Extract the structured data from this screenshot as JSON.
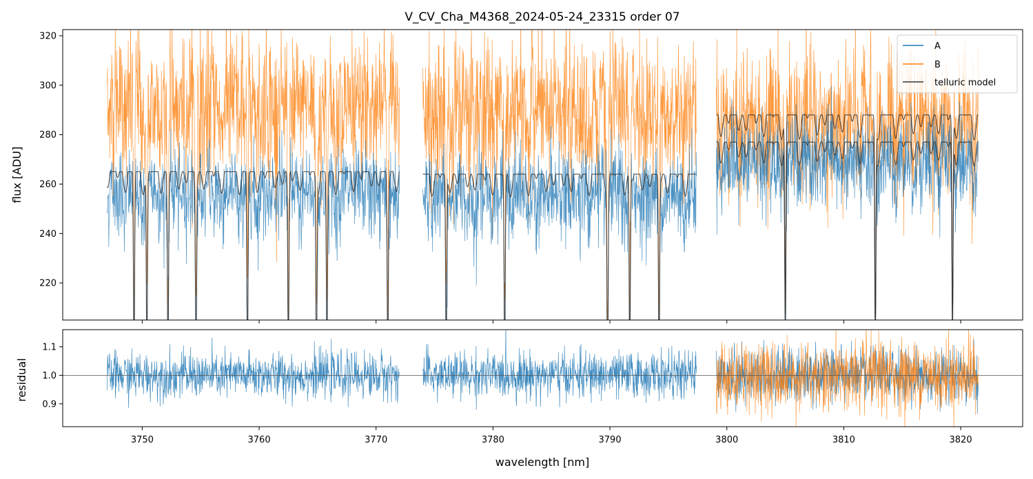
{
  "title": "V_CV_Cha_M4368_2024-05-24_23315  order 07",
  "colors": {
    "A": "#1f77b4",
    "B": "#ff7f0e",
    "telluric": "#333333",
    "axes": "#000000"
  },
  "chart_data": [
    {
      "type": "line",
      "panel": "flux",
      "xlabel": "",
      "ylabel": "flux [ADU]",
      "xlim": [
        3743.2,
        3825.3
      ],
      "ylim": [
        205,
        322.5
      ],
      "yticks": [
        220,
        240,
        260,
        280,
        300,
        320
      ],
      "xticks": [
        3750,
        3760,
        3770,
        3780,
        3790,
        3800,
        3810,
        3820
      ],
      "legend_position": "top-right",
      "legend": [
        "A",
        "B",
        "telluric model"
      ],
      "segments": [
        {
          "x_range": [
            3747.0,
            3772.0
          ],
          "A_level": 258,
          "B_level": 293,
          "model_level": 265
        },
        {
          "x_range": [
            3774.0,
            3797.4
          ],
          "A_level": 257,
          "B_level": 291,
          "model_level": 264
        },
        {
          "x_range": [
            3799.1,
            3821.5
          ],
          "A_level": 270,
          "B_level": 287,
          "model_upper_level": 288,
          "model_lower_level": 277
        }
      ],
      "telluric_absorption_lines": [
        3749.3,
        3750.4,
        3752.2,
        3754.6,
        3759.0,
        3762.5,
        3764.9,
        3765.8,
        3771.0,
        3776.0,
        3781.0,
        3789.8,
        3791.7,
        3794.2,
        3805.0,
        3812.7,
        3819.3
      ]
    },
    {
      "type": "line",
      "panel": "residual",
      "xlabel": "wavelength [nm]",
      "ylabel": "residual",
      "xlim": [
        3743.2,
        3825.3
      ],
      "ylim": [
        0.82,
        1.16
      ],
      "yticks": [
        0.9,
        1.0,
        1.1
      ],
      "xticks": [
        3750,
        3760,
        3770,
        3780,
        3790,
        3800,
        3810,
        3820
      ],
      "reference_line": 1.0,
      "segments": [
        {
          "x_range": [
            3747.0,
            3772.0
          ],
          "A_scatter": 0.04
        },
        {
          "x_range": [
            3774.0,
            3797.4
          ],
          "A_scatter": 0.04
        },
        {
          "x_range": [
            3799.1,
            3821.5
          ],
          "A_scatter": 0.05,
          "B_scatter": 0.06
        }
      ]
    }
  ]
}
